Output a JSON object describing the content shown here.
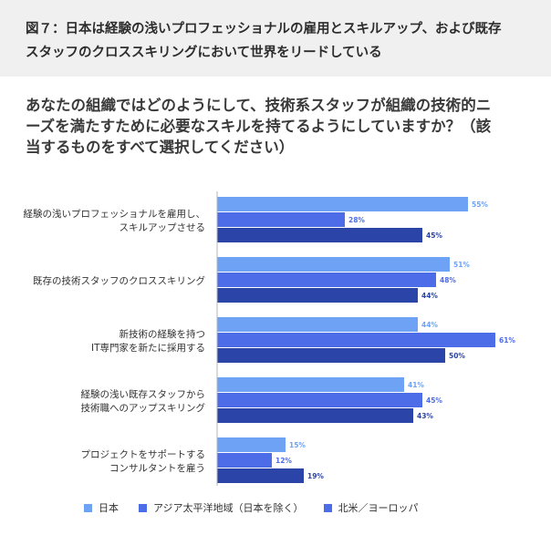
{
  "figure": {
    "title_line1": "図７：日本は経験の浅いプロフェッショナルの雇用とスキルアップ、および既存",
    "title_line2": "スタッフのクロススキリングにおいて世界をリードしている",
    "question_line1": "あなたの組織ではどのようにして、技術系スタッフが組織の技術",
    "question_line2": "的ニーズを満たすために必要なスキルを持てるようにしていますか？（該当するものをすべて選択してください）"
  },
  "chart_data": {
    "type": "bar",
    "orientation": "horizontal",
    "categories": [
      [
        "経験の浅いプロフェッショナルを雇用し、",
        "スキルアップさせる"
      ],
      [
        "既存の技術スタッフのクロススキリング"
      ],
      [
        "新技術の経験を持つ",
        "IT専門家を新たに採用する"
      ],
      [
        "経験の浅い既存スタッフから",
        "技術職へのアップスキリング"
      ],
      [
        "プロジェクトをサポートする",
        "コンサルタントを雇う"
      ]
    ],
    "series": [
      {
        "name": "日本",
        "color": "#6da2f5",
        "values": [
          55,
          51,
          44,
          41,
          15
        ]
      },
      {
        "name": "アジア太平洋地域（日本を除く）",
        "color": "#4d6ce8",
        "values": [
          28,
          48,
          61,
          45,
          12
        ]
      },
      {
        "name": "北米／ヨーロッパ",
        "color": "#2a44a8",
        "values": [
          45,
          44,
          50,
          43,
          19
        ]
      }
    ],
    "value_format": "{v}%",
    "value_label_colors": [
      "#6da2f5",
      "#4d6ce8",
      "#2a44a8"
    ],
    "legend": {
      "position": "bottom-left",
      "marker_colors": [
        "#6da2f5",
        "#4d6ce8",
        "#4d6ce8"
      ]
    },
    "xlim": [
      0,
      70
    ],
    "grid": false
  }
}
